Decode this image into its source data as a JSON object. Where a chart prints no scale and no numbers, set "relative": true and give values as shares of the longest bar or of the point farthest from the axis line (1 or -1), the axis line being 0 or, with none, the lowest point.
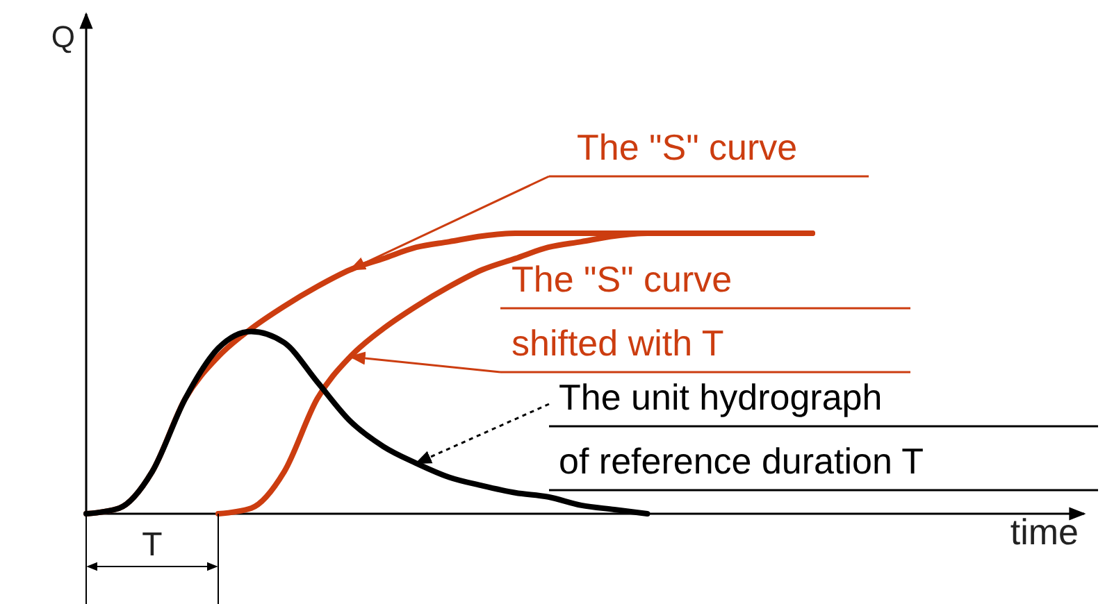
{
  "chart_data": {
    "type": "line",
    "relative": true,
    "legend": "right",
    "categories": [
      null,
      null,
      null,
      null,
      null,
      null,
      null,
      null,
      null,
      null,
      null,
      null,
      null,
      null,
      null,
      null,
      null,
      null,
      null,
      null,
      null,
      null,
      null
    ],
    "series": [
      {
        "name": "The \"S\" curve",
        "color": "#cc3d10",
        "values": [
          0,
          0.02,
          0.15,
          0.41,
          0.56,
          0.66,
          0.74,
          0.81,
          0.87,
          0.91,
          0.95,
          0.97,
          0.99,
          1,
          1,
          1,
          1,
          1,
          1,
          1,
          1,
          1,
          1
        ]
      },
      {
        "name": "The \"S\" curve\nshifted with T",
        "color": "#cc3d10",
        "values": [
          null,
          null,
          null,
          null,
          0,
          0.02,
          0.15,
          0.41,
          0.56,
          0.66,
          0.74,
          0.81,
          0.87,
          0.91,
          0.95,
          0.97,
          0.99,
          1,
          1,
          1,
          1,
          1,
          1
        ]
      },
      {
        "name": "The unit hydrograph\nof reference duration T",
        "color": "#000000",
        "values": [
          0,
          0.02,
          0.15,
          0.41,
          0.59,
          0.65,
          0.61,
          0.47,
          0.33,
          0.24,
          0.18,
          0.13,
          0.1,
          0.075,
          0.06,
          0.03,
          0.015,
          0,
          null,
          null,
          null,
          null,
          null
        ]
      }
    ],
    "annotations": [
      "T",
      "Q",
      "time"
    ]
  }
}
